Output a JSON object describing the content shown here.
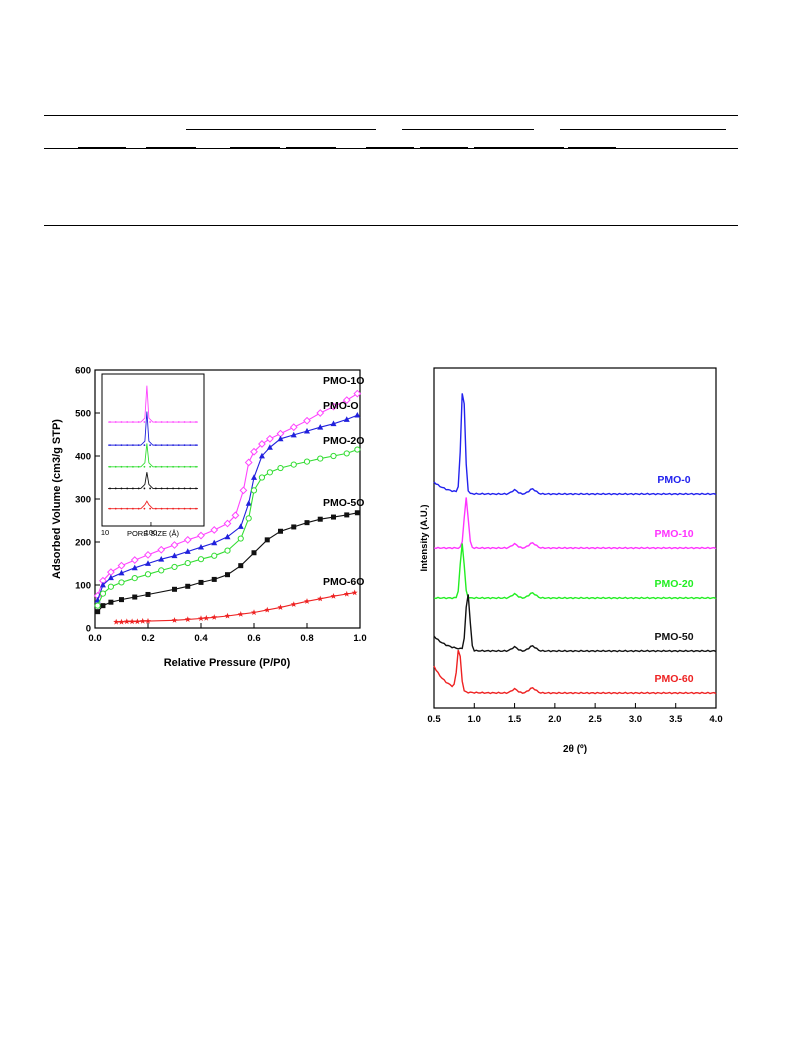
{
  "table": {
    "top_rule": true,
    "group_rules": 3,
    "sub_rules": 9,
    "bottom_rule": true
  },
  "chart_data": [
    {
      "type": "scatter",
      "xlabel": "Relative Pressure (P/P0)",
      "ylabel": "Adsorbed Volume (cm3/g STP)",
      "xlim": [
        0.0,
        1.0
      ],
      "ylim": [
        0,
        600
      ],
      "xticks": [
        "0.0",
        "0.2",
        "0.4",
        "0.6",
        "0.8",
        "1.0"
      ],
      "yticks": [
        "0",
        "100",
        "200",
        "300",
        "400",
        "500",
        "600"
      ],
      "series": [
        {
          "name": "PMO-1O",
          "color": "#ff44ff",
          "marker": "diamond-open",
          "x": [
            0.01,
            0.03,
            0.06,
            0.1,
            0.15,
            0.2,
            0.25,
            0.3,
            0.35,
            0.4,
            0.45,
            0.5,
            0.53,
            0.56,
            0.58,
            0.6,
            0.63,
            0.66,
            0.7,
            0.75,
            0.8,
            0.85,
            0.9,
            0.95,
            0.99
          ],
          "y": [
            75,
            110,
            130,
            145,
            158,
            170,
            182,
            193,
            205,
            215,
            228,
            243,
            262,
            320,
            385,
            410,
            428,
            440,
            452,
            467,
            482,
            500,
            515,
            530,
            545
          ]
        },
        {
          "name": "PMO-O",
          "color": "#2020dd",
          "marker": "triangle",
          "x": [
            0.01,
            0.03,
            0.06,
            0.1,
            0.15,
            0.2,
            0.25,
            0.3,
            0.35,
            0.4,
            0.45,
            0.5,
            0.55,
            0.58,
            0.6,
            0.63,
            0.66,
            0.7,
            0.75,
            0.8,
            0.85,
            0.9,
            0.95,
            0.99
          ],
          "y": [
            65,
            100,
            117,
            128,
            140,
            150,
            160,
            168,
            178,
            188,
            198,
            212,
            236,
            290,
            350,
            400,
            420,
            440,
            449,
            458,
            467,
            475,
            485,
            495
          ]
        },
        {
          "name": "PMO-2O",
          "color": "#33dd33",
          "marker": "circle-open",
          "x": [
            0.01,
            0.03,
            0.06,
            0.1,
            0.15,
            0.2,
            0.25,
            0.3,
            0.35,
            0.4,
            0.45,
            0.5,
            0.55,
            0.58,
            0.6,
            0.63,
            0.66,
            0.7,
            0.75,
            0.8,
            0.85,
            0.9,
            0.95,
            0.99
          ],
          "y": [
            52,
            80,
            96,
            106,
            116,
            125,
            134,
            142,
            151,
            160,
            168,
            180,
            208,
            255,
            320,
            350,
            362,
            372,
            380,
            387,
            394,
            400,
            406,
            415
          ]
        },
        {
          "name": "PMO-5O",
          "color": "#111111",
          "marker": "square",
          "x": [
            0.01,
            0.03,
            0.06,
            0.1,
            0.15,
            0.2,
            0.3,
            0.35,
            0.4,
            0.45,
            0.5,
            0.55,
            0.6,
            0.65,
            0.7,
            0.75,
            0.8,
            0.85,
            0.9,
            0.95,
            0.99
          ],
          "y": [
            38,
            52,
            60,
            66,
            72,
            78,
            90,
            97,
            106,
            113,
            124,
            145,
            175,
            205,
            225,
            235,
            245,
            253,
            258,
            263,
            268
          ]
        },
        {
          "name": "PMO-6O",
          "color": "#ee2222",
          "marker": "star",
          "x": [
            0.08,
            0.1,
            0.12,
            0.14,
            0.16,
            0.18,
            0.2,
            0.3,
            0.35,
            0.4,
            0.42,
            0.45,
            0.5,
            0.55,
            0.6,
            0.65,
            0.7,
            0.75,
            0.8,
            0.85,
            0.9,
            0.95,
            0.98
          ],
          "y": [
            14,
            14,
            15,
            15,
            15,
            16,
            16,
            18,
            20,
            22,
            23,
            25,
            28,
            32,
            36,
            42,
            48,
            55,
            62,
            68,
            74,
            79,
            82
          ]
        }
      ],
      "inset": {
        "xlabel": "PORE SIZE (Å)",
        "xticks": [
          "10",
          "100"
        ],
        "traces": [
          {
            "color": "#ff44ff",
            "base": 0.72,
            "peak": 1.0
          },
          {
            "color": "#2020dd",
            "base": 0.56,
            "peak": 0.82
          },
          {
            "color": "#33dd33",
            "base": 0.41,
            "peak": 0.6
          },
          {
            "color": "#111111",
            "base": 0.26,
            "peak": 0.4
          },
          {
            "color": "#ee2222",
            "base": 0.12,
            "peak": 0.2
          }
        ]
      }
    },
    {
      "type": "line",
      "xlabel": "2θ (º)",
      "ylabel": "Intensity (A.U.)",
      "xlim": [
        0.5,
        4.0
      ],
      "xticks": [
        "0.5",
        "1.0",
        "1.5",
        "2.0",
        "2.5",
        "3.0",
        "3.5",
        "4.0"
      ],
      "series": [
        {
          "name": "PMO-0",
          "color": "#2222ee",
          "peak_x": 0.86,
          "peak_h": 1.0
        },
        {
          "name": "PMO-10",
          "color": "#ff33ff",
          "peak_x": 0.9,
          "peak_h": 0.55
        },
        {
          "name": "PMO-20",
          "color": "#22ee22",
          "peak_x": 0.85,
          "peak_h": 0.62
        },
        {
          "name": "PMO-50",
          "color": "#111111",
          "peak_x": 0.92,
          "peak_h": 0.75
        },
        {
          "name": "PMO-60",
          "color": "#ee2222",
          "peak_x": 0.81,
          "peak_h": 0.48
        }
      ]
    }
  ]
}
